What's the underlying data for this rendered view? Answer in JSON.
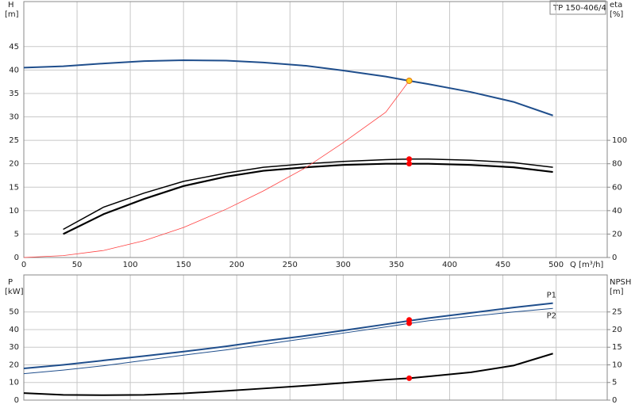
{
  "model": "TP 150-406/4",
  "chart_data": [
    {
      "type": "line",
      "ylabel": "H",
      "yunit": "[m]",
      "y2label": "eta",
      "y2unit": "[%]",
      "xlabel": "Q [m³/h]",
      "xlim": [
        0,
        548
      ],
      "xticks": [
        0,
        50,
        100,
        150,
        200,
        250,
        300,
        350,
        400,
        450,
        500
      ],
      "ylim": [
        0,
        54.6
      ],
      "yticks": [
        0,
        5,
        10,
        15,
        20,
        25,
        30,
        35,
        40,
        45
      ],
      "y2lim": [
        0,
        218.4
      ],
      "y2ticks": [
        0,
        20,
        40,
        60,
        80,
        100
      ],
      "grid": true,
      "series": [
        {
          "color": "#1f4e8c",
          "width": 2,
          "x": [
            0,
            37,
            75,
            113,
            150,
            190,
            225,
            265,
            300,
            340,
            362,
            380,
            420,
            460,
            497
          ],
          "values": [
            40.5,
            40.8,
            41.4,
            41.9,
            42.1,
            42,
            41.6,
            40.9,
            39.9,
            38.6,
            37.7,
            37,
            35.3,
            33.2,
            30.3
          ]
        },
        {
          "color": "#000000",
          "width": 1.5,
          "axis": "y2",
          "x": [
            37,
            75,
            113,
            150,
            190,
            225,
            265,
            300,
            340,
            362,
            380,
            420,
            460,
            497
          ],
          "values": [
            24,
            43,
            55,
            65,
            72,
            77,
            80,
            82,
            83.5,
            84,
            84,
            83,
            81,
            77
          ]
        },
        {
          "color": "#000000",
          "width": 2.2,
          "axis": "y2",
          "x": [
            37,
            75,
            113,
            150,
            190,
            225,
            265,
            300,
            340,
            362,
            380,
            420,
            460,
            497
          ],
          "values": [
            20,
            37,
            50,
            61,
            69,
            74,
            77,
            79,
            80,
            80,
            80,
            79,
            77,
            73
          ]
        },
        {
          "color": "#ff4040",
          "width": 0.8,
          "x": [
            0,
            37,
            75,
            113,
            150,
            190,
            225,
            265,
            300,
            340,
            362
          ],
          "values": [
            0,
            0.4,
            1.5,
            3.6,
            6.4,
            10.3,
            14.2,
            19.2,
            24.5,
            31,
            37.7
          ]
        }
      ],
      "markers": [
        {
          "color": "#ffd21f",
          "x": 362,
          "value": 37.7
        },
        {
          "color": "#ff0000",
          "axis": "y2",
          "x": 362,
          "value": 84
        },
        {
          "color": "#ff0000",
          "axis": "y2",
          "x": 362,
          "value": 80
        }
      ]
    },
    {
      "type": "line",
      "ylabel": "P",
      "yunit": "[kW]",
      "y2label": "NPSH",
      "y2unit": "[m]",
      "xlim": [
        0,
        548
      ],
      "xticks": [
        0,
        50,
        100,
        150,
        200,
        250,
        300,
        350,
        400,
        450,
        500
      ],
      "ylim": [
        0,
        71
      ],
      "yticks": [
        0,
        10,
        20,
        30,
        40,
        50
      ],
      "y2lim": [
        0,
        35.5
      ],
      "y2ticks": [
        0,
        5,
        10,
        15,
        20,
        25
      ],
      "grid": true,
      "series": [
        {
          "name": "P1",
          "color": "#1f4e8c",
          "width": 2,
          "x": [
            0,
            37,
            75,
            113,
            150,
            190,
            225,
            265,
            300,
            340,
            362,
            380,
            420,
            460,
            497
          ],
          "values": [
            18,
            20,
            22.5,
            25,
            27.5,
            30.5,
            33.5,
            36.5,
            39.5,
            43,
            45,
            46.5,
            49.5,
            52.5,
            55
          ]
        },
        {
          "name": "P2",
          "color": "#1f4e8c",
          "width": 1,
          "x": [
            0,
            37,
            75,
            113,
            150,
            190,
            225,
            265,
            300,
            340,
            362,
            380,
            420,
            460,
            497
          ],
          "values": [
            15,
            17,
            19.5,
            22.5,
            25.5,
            28.5,
            31.5,
            35,
            38,
            41.5,
            43.5,
            45,
            47.5,
            50,
            52
          ]
        },
        {
          "color": "#000000",
          "width": 2,
          "axis": "y2",
          "x": [
            0,
            37,
            75,
            113,
            150,
            190,
            225,
            265,
            300,
            340,
            362,
            380,
            420,
            460,
            497
          ],
          "values": [
            2,
            1.5,
            1.4,
            1.5,
            1.9,
            2.6,
            3.3,
            4.1,
            4.9,
            5.8,
            6.2,
            6.7,
            7.9,
            9.8,
            13.2
          ]
        }
      ],
      "markers": [
        {
          "color": "#ff0000",
          "x": 362,
          "value": 45.5
        },
        {
          "color": "#ff0000",
          "x": 362,
          "value": 43.6
        },
        {
          "color": "#ff0000",
          "axis": "y2",
          "x": 362,
          "value": 6.2
        }
      ]
    }
  ]
}
